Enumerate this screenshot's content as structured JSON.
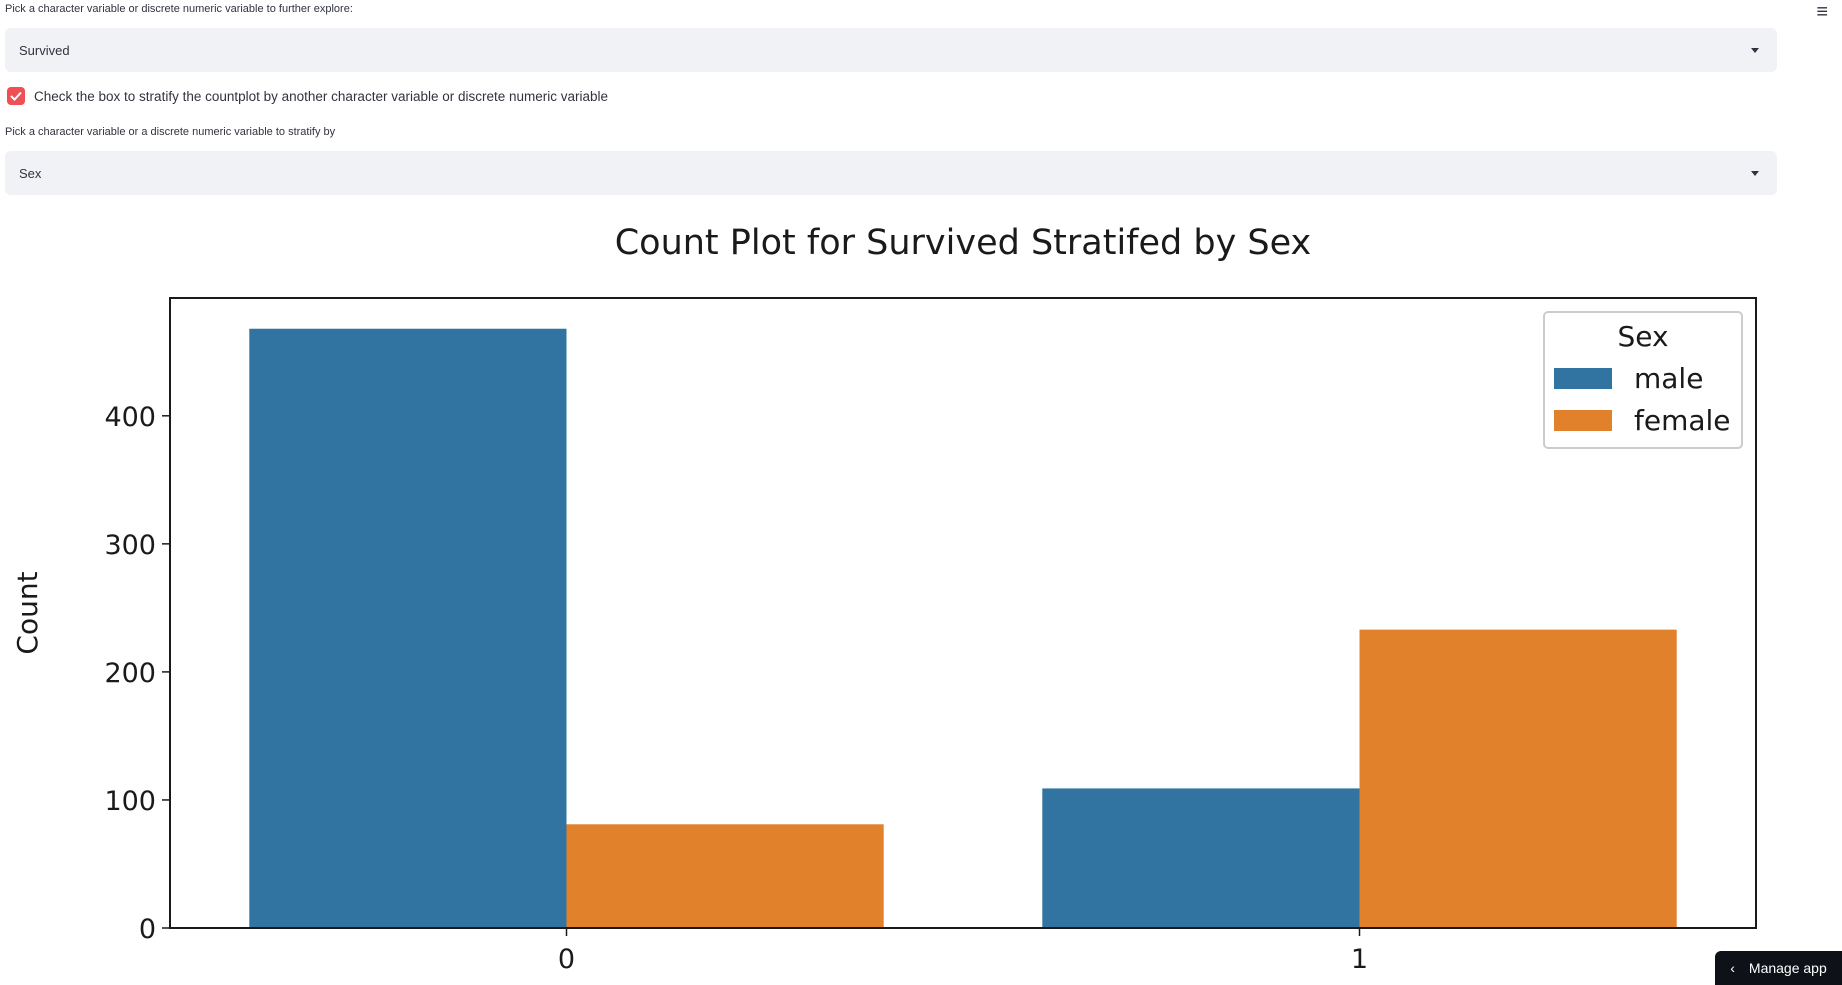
{
  "controls": {
    "variable_label": "Pick a character variable or discrete numeric variable to further explore:",
    "variable_value": "Survived",
    "stratify_checkbox_label": "Check the box to stratify the countplot by another character variable or discrete numeric variable",
    "stratify_checked": true,
    "stratify_label": "Pick a character variable or a discrete numeric variable to stratify by",
    "stratify_value": "Sex"
  },
  "menu_icon": "≡",
  "manage_app": {
    "icon": "‹",
    "label": "Manage app"
  },
  "chart_data": {
    "type": "bar",
    "title": "Count Plot for Survived Stratifed by Sex",
    "xlabel": "",
    "ylabel": "Count",
    "categories": [
      "0",
      "1"
    ],
    "series": [
      {
        "name": "male",
        "values": [
          468,
          109
        ],
        "color": "#3274a1"
      },
      {
        "name": "female",
        "values": [
          81,
          233
        ],
        "color": "#e1812c"
      }
    ],
    "ylim": [
      0,
      492
    ],
    "yticks": [
      0,
      100,
      200,
      300,
      400
    ],
    "legend": {
      "title": "Sex",
      "position": "top-right"
    },
    "grid": false
  }
}
